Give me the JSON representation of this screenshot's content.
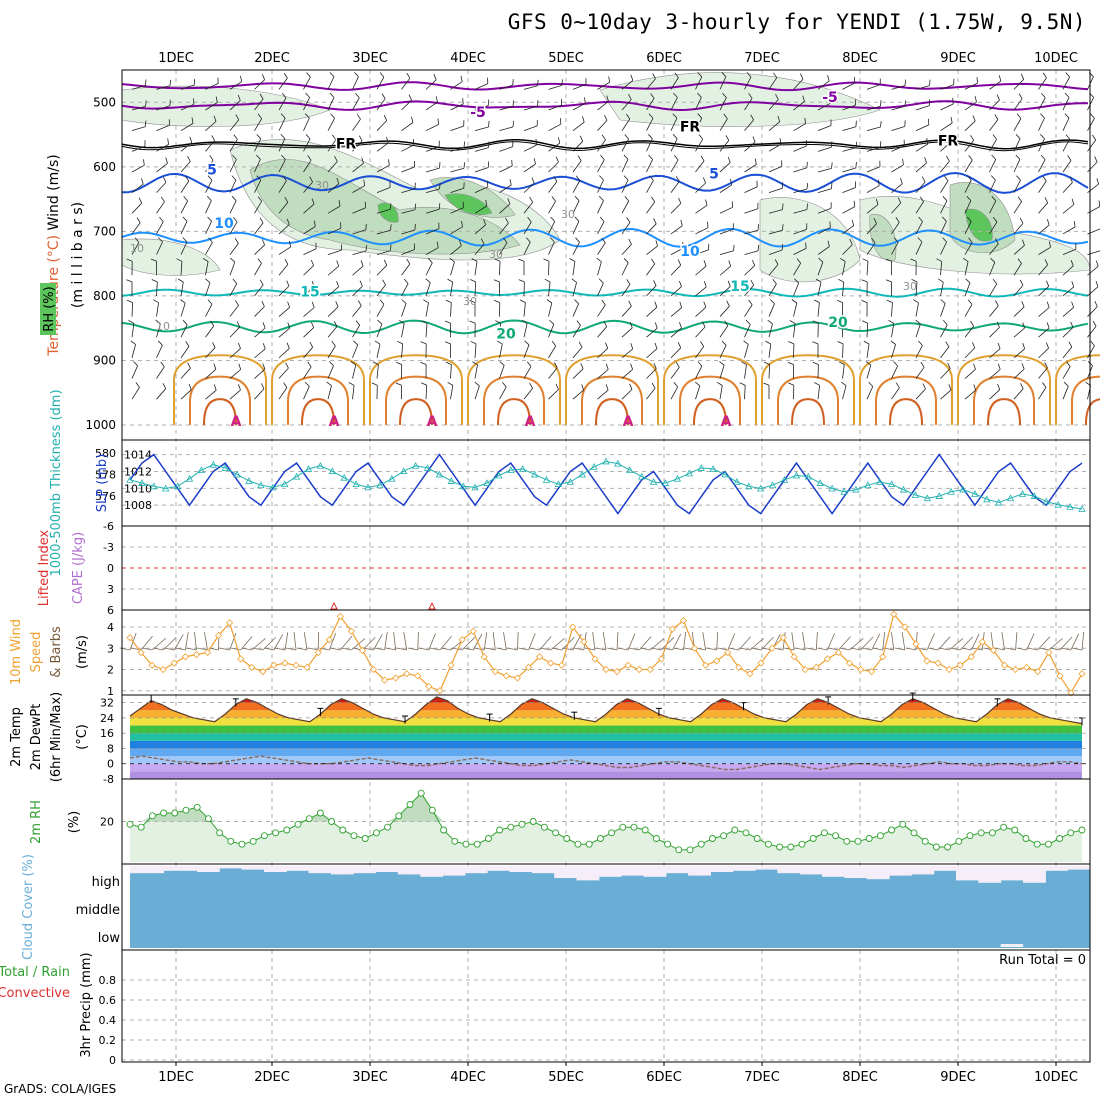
{
  "title": "GFS 0~10day 3-hourly for YENDI (1.75W, 9.5N)",
  "credit": "GrADS: COLA/IGES",
  "run_total_label": "Run Total = 0",
  "colors": {
    "rh_green": "#5cc65c",
    "rh_light": "#e3f1e3",
    "rh_mid": "#c0ddc0",
    "rh_dark": "#8faf8f",
    "temp_purple": "#8000a0",
    "temp_blue": "#1a4fd6",
    "temp_lightblue": "#1e90ff",
    "temp_teal": "#10b8b8",
    "temp_green": "#10a878",
    "temp_orange": "#e0a030",
    "slp_blue": "#1a3cc8",
    "thick_cyan": "#20b0b0",
    "li_red": "#e03030",
    "wind_orange": "#f0a030",
    "rh2m_green": "#30a030",
    "cloud_blue": "#6aaed6"
  },
  "chart_data": [
    {
      "type": "contour",
      "panel": "upper-air",
      "ylabel_parts": [
        "Wind (m/s)",
        "Temperature (°C)",
        "RH (%)",
        "(m i l l i b a r s)"
      ],
      "x_ticks": [
        "1DEC",
        "2DEC",
        "3DEC",
        "4DEC",
        "5DEC",
        "6DEC",
        "7DEC",
        "8DEC",
        "9DEC",
        "10DEC"
      ],
      "y_ticks": [
        500,
        600,
        700,
        800,
        900,
        1000
      ],
      "ylim": [
        1000,
        450
      ],
      "isotherm_labels": [
        "-5",
        "-5",
        "FR",
        "FR",
        "FR",
        "5",
        "5",
        "10",
        "10",
        "15",
        "15",
        "20",
        "20"
      ],
      "rh_labels": [
        "30",
        "30",
        "30",
        "30",
        "10",
        "10",
        "30"
      ],
      "isotherm_levels": [
        -5,
        0,
        5,
        10,
        15,
        20
      ]
    },
    {
      "type": "line",
      "panel": "slp-thickness",
      "ylabel_left": "1000-500mb Thickness (dm)",
      "ylabel_right": "SLP (mb)",
      "left_ticks": [
        "580",
        "578",
        "576"
      ],
      "right_ticks": [
        "1014",
        "1012",
        "1010",
        "1008"
      ],
      "series": [
        {
          "name": "SLP (mb)",
          "unit": "mb",
          "values": [
            1011,
            1013,
            1014,
            1012,
            1010,
            1008,
            1010,
            1012,
            1013,
            1011,
            1009,
            1008,
            1010,
            1012,
            1013,
            1011,
            1009,
            1008,
            1010,
            1012,
            1013,
            1011,
            1009,
            1008,
            1010,
            1012,
            1014,
            1012,
            1010,
            1008,
            1010,
            1012,
            1013,
            1011,
            1009,
            1008,
            1010,
            1012,
            1013,
            1011,
            1009,
            1007,
            1009,
            1011,
            1012,
            1010,
            1008,
            1007,
            1009,
            1011,
            1012,
            1010,
            1008,
            1007,
            1009,
            1011,
            1013,
            1011,
            1009,
            1007,
            1009,
            1011,
            1013,
            1011,
            1009,
            1008,
            1010,
            1012,
            1014,
            1012,
            1010,
            1008,
            1010,
            1012,
            1013,
            1011,
            1009,
            1008,
            1010,
            1012,
            1013
          ]
        },
        {
          "name": "1000-500mb Thickness (dm)",
          "unit": "dm",
          "values": [
            577.5,
            577.2,
            576.9,
            576.7,
            576.9,
            577.6,
            578.4,
            578.9,
            578.6,
            578.0,
            577.4,
            577.0,
            576.8,
            577.1,
            577.8,
            578.5,
            578.8,
            578.3,
            577.7,
            577.1,
            576.8,
            577.0,
            577.6,
            578.3,
            578.8,
            578.6,
            578.0,
            577.4,
            576.9,
            576.8,
            577.2,
            577.9,
            578.4,
            578.5,
            578.0,
            577.5,
            577.1,
            577.3,
            578.0,
            578.7,
            579.2,
            579.0,
            578.4,
            577.8,
            577.3,
            577.2,
            577.6,
            578.1,
            578.6,
            578.5,
            578.0,
            577.3,
            576.9,
            576.7,
            577.0,
            577.5,
            577.9,
            577.8,
            577.2,
            576.7,
            576.4,
            576.6,
            577.0,
            577.3,
            577.1,
            576.6,
            576.1,
            575.8,
            576.0,
            576.4,
            576.6,
            576.2,
            575.7,
            575.4,
            575.8,
            576.2,
            576.0,
            575.5,
            575.2,
            575.0,
            574.8
          ]
        }
      ]
    },
    {
      "type": "line",
      "panel": "cape-li",
      "ylabel_parts": [
        "Lifted Index",
        "CAPE (J/kg)"
      ],
      "y_ticks": [
        "-6",
        "-3",
        "0",
        "3",
        "6"
      ],
      "ylim": [
        -6,
        6
      ],
      "zero_line": 0
    },
    {
      "type": "line",
      "panel": "10m-wind",
      "ylabel_parts": [
        "10m Wind",
        "Speed",
        "& Barbs",
        "(m/s)"
      ],
      "y_ticks": [
        "1",
        "2",
        "3",
        "4"
      ],
      "ylim": [
        0.8,
        4.8
      ],
      "series": [
        {
          "name": "10m Wind Speed",
          "unit": "m/s",
          "values": [
            3.5,
            2.8,
            2.2,
            2.0,
            2.3,
            2.6,
            2.7,
            2.8,
            3.6,
            4.2,
            2.5,
            2.1,
            1.9,
            2.2,
            2.3,
            2.2,
            2.1,
            2.8,
            3.4,
            4.5,
            3.8,
            2.9,
            2.0,
            1.5,
            1.6,
            1.8,
            1.7,
            1.2,
            1.0,
            2.2,
            3.4,
            3.8,
            2.6,
            1.9,
            1.7,
            1.6,
            2.1,
            2.6,
            2.3,
            2.2,
            4.0,
            3.3,
            2.5,
            2.0,
            1.9,
            2.2,
            2.0,
            2.0,
            2.5,
            3.9,
            4.3,
            3.0,
            2.2,
            2.4,
            2.8,
            2.1,
            1.8,
            2.3,
            3.0,
            3.5,
            2.6,
            2.0,
            2.1,
            2.5,
            2.8,
            2.3,
            2.0,
            1.9,
            2.6,
            4.6,
            4.0,
            3.2,
            2.4,
            2.3,
            2.0,
            2.2,
            2.6,
            3.3,
            2.9,
            2.2,
            2.0,
            2.1,
            1.9,
            2.8,
            1.7,
            0.9,
            1.8
          ]
        }
      ]
    },
    {
      "type": "area",
      "panel": "2m-temp",
      "ylabel_parts": [
        "2m Temp",
        "2m DewPt",
        "(6hr Min/Max)",
        "(°C)"
      ],
      "y_ticks": [
        "32",
        "24",
        "16",
        "8",
        "0",
        "-8"
      ],
      "ylim": [
        -8,
        36
      ],
      "series": [
        {
          "name": "2m Temp",
          "unit": "°C",
          "values": [
            25,
            29,
            33,
            31,
            28,
            26,
            24,
            23,
            22,
            26,
            31,
            34,
            32,
            29,
            26,
            24,
            23,
            22,
            26,
            31,
            34,
            32,
            29,
            26,
            24,
            23,
            22,
            26,
            31,
            35,
            33,
            29,
            26,
            24,
            23,
            22,
            26,
            31,
            34,
            32,
            29,
            26,
            24,
            23,
            22,
            26,
            31,
            34,
            32,
            29,
            26,
            24,
            23,
            22,
            26,
            31,
            34,
            32,
            29,
            26,
            24,
            23,
            22,
            26,
            31,
            34,
            32,
            29,
            26,
            24,
            23,
            22,
            26,
            31,
            34,
            32,
            29,
            26,
            24,
            23,
            22,
            26,
            31,
            34,
            32,
            29,
            26,
            24,
            23,
            22,
            21
          ]
        },
        {
          "name": "2m DewPt",
          "unit": "°C",
          "values": [
            3,
            4,
            3,
            2,
            1,
            1,
            0,
            0,
            1,
            2,
            3,
            4,
            3,
            2,
            1,
            0,
            0,
            0,
            1,
            2,
            3,
            2,
            1,
            0,
            -1,
            -1,
            0,
            1,
            2,
            3,
            2,
            1,
            0,
            -1,
            -1,
            0,
            1,
            2,
            1,
            0,
            -1,
            -2,
            -2,
            -1,
            0,
            1,
            1,
            0,
            -1,
            -2,
            -3,
            -3,
            -2,
            -1,
            0,
            0,
            -1,
            -2,
            -3,
            -2,
            -1,
            0,
            0,
            -1,
            -1,
            -2,
            -1,
            0,
            1,
            0,
            0,
            -1,
            -1,
            0,
            0,
            -1,
            -1,
            0,
            1,
            1,
            0
          ]
        }
      ]
    },
    {
      "type": "line",
      "panel": "2m-rh",
      "ylabel_parts": [
        "2m RH",
        "(%)"
      ],
      "y_ticks": [
        "20"
      ],
      "ylim": [
        5,
        35
      ],
      "series": [
        {
          "name": "2m RH",
          "unit": "%",
          "values": [
            19,
            18,
            22,
            23,
            23,
            24,
            25,
            21,
            16,
            13,
            12,
            13,
            15,
            16,
            17,
            19,
            21,
            23,
            20,
            17,
            15,
            14,
            16,
            18,
            22,
            26,
            30,
            24,
            17,
            13,
            12,
            12,
            14,
            17,
            18,
            19,
            20,
            18,
            16,
            14,
            12,
            12,
            14,
            16,
            18,
            18,
            17,
            14,
            12,
            10,
            10,
            12,
            14,
            15,
            17,
            16,
            14,
            12,
            11,
            11,
            12,
            14,
            16,
            15,
            13,
            13,
            14,
            15,
            17,
            19,
            16,
            13,
            11,
            11,
            13,
            15,
            16,
            16,
            18,
            17,
            14,
            12,
            12,
            14,
            16,
            17
          ]
        }
      ]
    },
    {
      "type": "bar",
      "panel": "cloud-cover",
      "ylabel": "Cloud Cover (%)",
      "levels": [
        "high",
        "middle",
        "low"
      ],
      "series": [
        {
          "name": "high cloud (%)",
          "values": [
            70,
            70,
            70,
            80,
            80,
            80,
            75,
            75,
            90,
            90,
            85,
            85,
            75,
            75,
            80,
            80,
            70,
            70,
            65,
            65,
            70,
            70,
            75,
            75,
            65,
            65,
            55,
            55,
            60,
            60,
            70,
            70,
            80,
            80,
            75,
            75,
            70,
            70,
            50,
            50,
            40,
            40,
            55,
            55,
            60,
            60,
            55,
            55,
            70,
            70,
            60,
            60,
            75,
            75,
            80,
            80,
            85,
            85,
            70,
            70,
            65,
            65,
            55,
            55,
            50,
            50,
            45,
            45,
            60,
            60,
            65,
            65,
            80,
            80,
            40,
            40,
            30,
            30,
            40,
            40,
            30,
            30,
            80,
            80,
            85,
            85
          ]
        },
        {
          "name": "low cloud (%)",
          "values": [
            0,
            0,
            0,
            0,
            0,
            0,
            0,
            0,
            0,
            0,
            0,
            0,
            0,
            0,
            0,
            0,
            0,
            0,
            0,
            0,
            0,
            0,
            0,
            0,
            0,
            0,
            0,
            0,
            0,
            0,
            0,
            0,
            0,
            0,
            0,
            0,
            0,
            0,
            0,
            0,
            0,
            0,
            0,
            0,
            0,
            0,
            0,
            0,
            0,
            0,
            0,
            0,
            0,
            0,
            0,
            0,
            0,
            0,
            0,
            0,
            0,
            0,
            0,
            0,
            0,
            0,
            0,
            0,
            0,
            0,
            0,
            0,
            0,
            0,
            0,
            0,
            0,
            0,
            10,
            10,
            0,
            0,
            0,
            0,
            0,
            0
          ]
        }
      ]
    },
    {
      "type": "bar",
      "panel": "precip",
      "ylabel_parts": [
        "Total / Rain",
        "Convective",
        "3hr Precip (mm)"
      ],
      "y_ticks": [
        "0.8",
        "0.6",
        "0.4",
        "0.2",
        "0"
      ],
      "ylim": [
        0,
        1
      ],
      "series": [
        {
          "name": "3hr Precip (mm)",
          "values": [
            0,
            0,
            0,
            0,
            0,
            0,
            0,
            0,
            0,
            0
          ]
        }
      ]
    }
  ]
}
